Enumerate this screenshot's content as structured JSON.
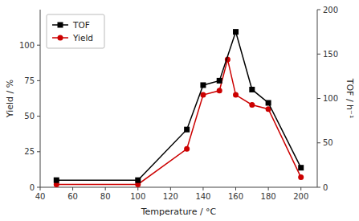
{
  "chart_data": {
    "type": "line",
    "x_label": "Temperature / °C",
    "y_label": "Yield / %",
    "y2_label": "TOF / h⁻¹",
    "xlim": [
      40,
      210
    ],
    "xticks": [
      40,
      60,
      80,
      100,
      120,
      140,
      160,
      180,
      200
    ],
    "ylim": [
      0,
      125
    ],
    "yticks": [
      0,
      25,
      50,
      75,
      100
    ],
    "y2lim": [
      0,
      200
    ],
    "y2ticks": [
      0,
      50,
      100,
      150,
      200
    ],
    "grid": false,
    "legend": "upper left",
    "series": [
      {
        "name": "TOF",
        "color": "#000000",
        "marker": "square",
        "axis": "y2",
        "x": [
          50,
          100,
          130,
          140,
          150,
          160,
          170,
          180,
          200
        ],
        "values": [
          8,
          8,
          65,
          115,
          120,
          175,
          110,
          95,
          22
        ]
      },
      {
        "name": "Yield",
        "color": "#cc0000",
        "marker": "circle",
        "axis": "y",
        "x": [
          50,
          100,
          130,
          140,
          150,
          155,
          160,
          170,
          180,
          200
        ],
        "values": [
          2,
          2,
          27,
          65,
          68,
          90,
          65,
          58,
          55,
          7
        ]
      }
    ]
  }
}
